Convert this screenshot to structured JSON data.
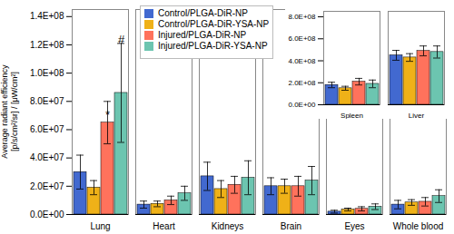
{
  "chart_data": [
    {
      "type": "bar",
      "categories": [
        "Lung",
        "Heart",
        "Kidneys",
        "Brain",
        "Eyes",
        "Whole blood"
      ],
      "series": [
        {
          "name": "Control/PLGA-DiR-NP",
          "values": [
            30000000.0,
            7000000.0,
            27000000.0,
            20000000.0,
            2000000.0,
            7000000.0
          ],
          "errors": [
            12000000.0,
            2500000.0,
            10000000.0,
            6000000.0,
            1000000.0,
            3000000.0
          ]
        },
        {
          "name": "Control/PLGA-DiR-YSA-NP",
          "values": [
            19000000.0,
            7500000.0,
            18000000.0,
            20000000.0,
            3500000.0,
            8500000.0
          ],
          "errors": [
            5000000.0,
            2000000.0,
            6000000.0,
            5000000.0,
            1000000.0,
            2000000.0
          ]
        },
        {
          "name": "Injured/PLGA-DiR-NP",
          "values": [
            65000000.0,
            10000000.0,
            21000000.0,
            20000000.0,
            4000000.0,
            9000000.0
          ],
          "errors": [
            15000000.0,
            3000000.0,
            6000000.0,
            7000000.0,
            1500000.0,
            3000000.0
          ]
        },
        {
          "name": "Injured/PLGA-DiR-YSA-NP",
          "values": [
            86000000.0,
            15000000.0,
            26000000.0,
            24000000.0,
            5500000.0,
            13000000.0
          ],
          "errors": [
            35000000.0,
            5000000.0,
            12000000.0,
            10000000.0,
            2000000.0,
            4500000.0
          ]
        }
      ],
      "ylabel": "Average radiant efficiency\n[p/s/cm²/sr] / [μW/cm²]",
      "ylim": [
        0,
        145000000.0
      ],
      "yticks": [
        {
          "value": 0,
          "label": "0.0E+00"
        },
        {
          "value": 20000000.0,
          "label": "2.0E+07"
        },
        {
          "value": 40000000.0,
          "label": "4.0E+07"
        },
        {
          "value": 60000000.0,
          "label": "6.0E+07"
        },
        {
          "value": 80000000.0,
          "label": "8.0E+07"
        },
        {
          "value": 100000000.0,
          "label": "1.0E+08"
        },
        {
          "value": 120000000.0,
          "label": "1.2E+08"
        },
        {
          "value": 140000000.0,
          "label": "1.4E+08"
        }
      ],
      "grid": false,
      "legend": "upper left",
      "annotations": [
        {
          "text": "*",
          "category": "Lung",
          "series": "Injured/PLGA-DiR-NP",
          "y": 68000000.0
        },
        {
          "text": "#",
          "category": "Lung",
          "series": "Injured/PLGA-DiR-YSA-NP",
          "y": 121000000.0
        }
      ]
    },
    {
      "type": "bar",
      "categories": [
        "Spleen",
        "Liver"
      ],
      "series": [
        {
          "values": [
            180000000.0,
            450000000.0
          ],
          "errors": [
            25000000.0,
            45000000.0
          ]
        },
        {
          "values": [
            150000000.0,
            430000000.0
          ],
          "errors": [
            18000000.0,
            35000000.0
          ]
        },
        {
          "values": [
            210000000.0,
            490000000.0
          ],
          "errors": [
            30000000.0,
            45000000.0
          ]
        },
        {
          "values": [
            190000000.0,
            480000000.0
          ],
          "errors": [
            35000000.0,
            55000000.0
          ]
        }
      ],
      "ylim": [
        0,
        850000000.0
      ],
      "yticks": [
        {
          "value": 0,
          "label": "0.0E+00"
        },
        {
          "value": 200000000.0,
          "label": "2.0E+08"
        },
        {
          "value": 400000000.0,
          "label": "4.0E+08"
        },
        {
          "value": 600000000.0,
          "label": "6.0E+08"
        },
        {
          "value": 800000000.0,
          "label": "8.0E+08"
        }
      ],
      "grid": false
    }
  ]
}
